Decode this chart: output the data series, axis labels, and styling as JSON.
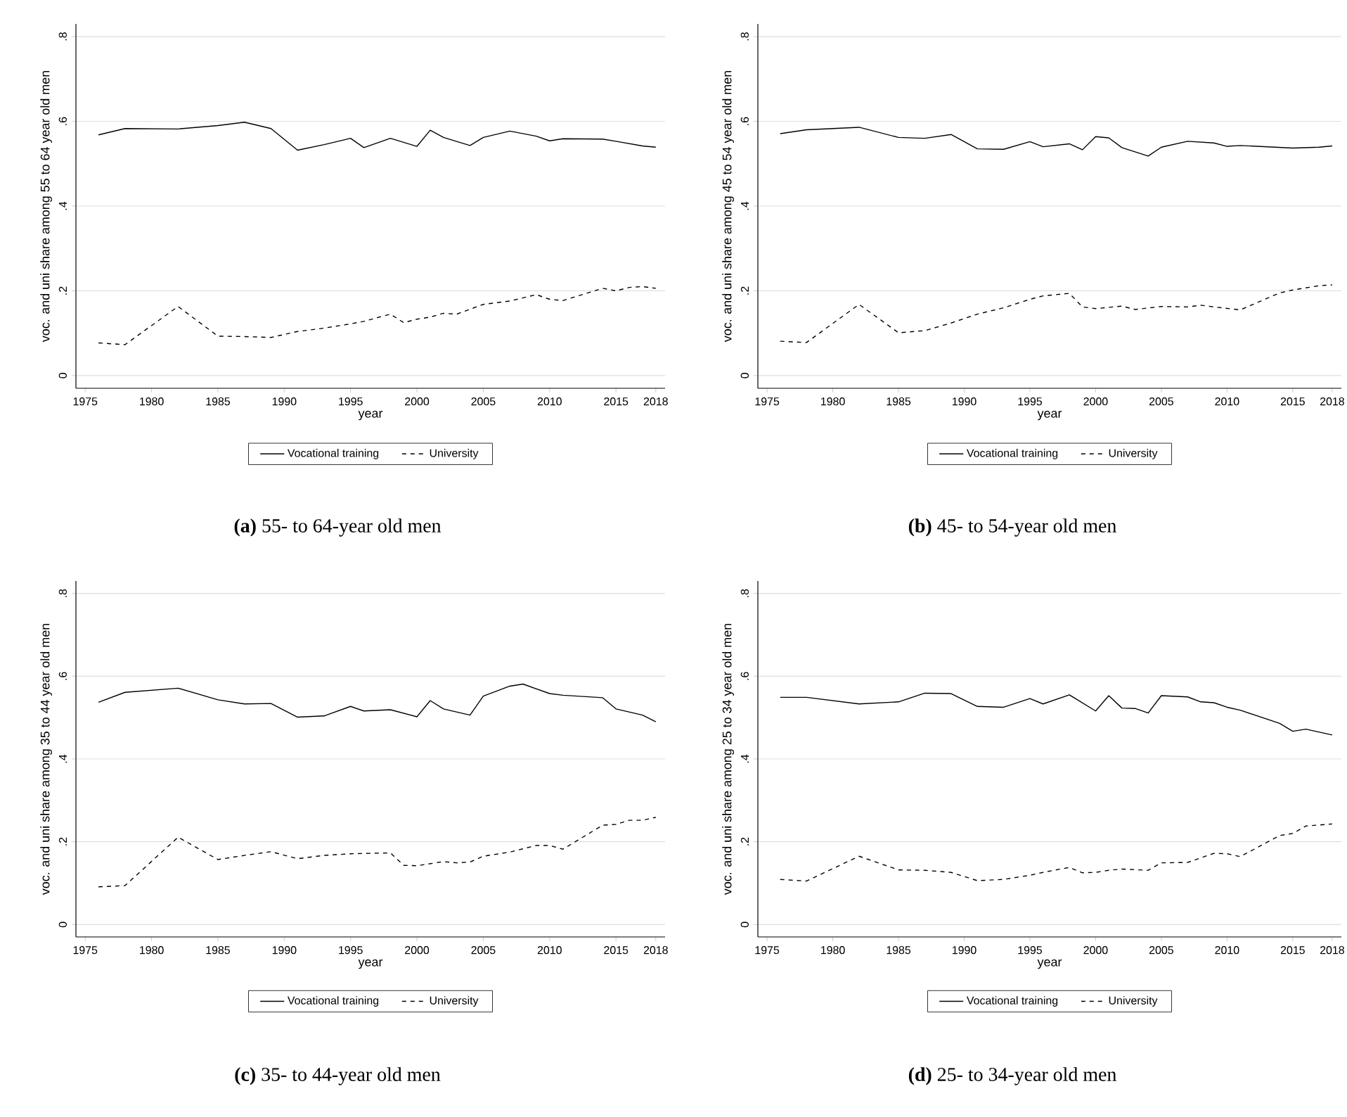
{
  "chart_data": [
    {
      "type": "line",
      "title": "**(a)** 55- to 64-year old men",
      "xlabel": "year",
      "ylabel": "voc. and uni share among 55 to 64 year old men",
      "xlim": [
        1974.3,
        2018.7
      ],
      "ylim": [
        -0.03,
        0.83
      ],
      "xticks": [
        1975,
        1980,
        1985,
        1990,
        1995,
        2000,
        2005,
        2010,
        2015,
        2018
      ],
      "yticks": [
        {
          "value": 0,
          "label": "0"
        },
        {
          "value": 0.2,
          "label": ".2"
        },
        {
          "value": 0.4,
          "label": ".4"
        },
        {
          "value": 0.6,
          "label": ".6"
        },
        {
          "value": 0.8,
          "label": ".8"
        }
      ],
      "grid": "y",
      "legend": "bottom",
      "series": [
        {
          "name": "Vocational training",
          "color": "#000000",
          "line_style": "solid",
          "x": [
            1976,
            1978,
            1982,
            1985,
            1987,
            1989,
            1991,
            1993,
            1995,
            1996,
            1998,
            2000,
            2001,
            2002,
            2004,
            2005,
            2007,
            2009,
            2010,
            2011,
            2014,
            2015,
            2017,
            2018
          ],
          "values": [
            0.568,
            0.583,
            0.582,
            0.59,
            0.598,
            0.583,
            0.532,
            0.545,
            0.56,
            0.538,
            0.56,
            0.541,
            0.579,
            0.562,
            0.543,
            0.562,
            0.577,
            0.565,
            0.554,
            0.559,
            0.558,
            0.553,
            0.542,
            0.539
          ]
        },
        {
          "name": "University",
          "color": "#000000",
          "line_style": "dashed",
          "x": [
            1976,
            1978,
            1982,
            1985,
            1987,
            1989,
            1991,
            1993,
            1995,
            1996,
            1998,
            1999,
            2000,
            2001,
            2002,
            2003,
            2005,
            2007,
            2009,
            2010,
            2011,
            2014,
            2015,
            2016,
            2017,
            2018
          ],
          "values": [
            0.077,
            0.073,
            0.163,
            0.093,
            0.092,
            0.09,
            0.104,
            0.112,
            0.122,
            0.128,
            0.145,
            0.125,
            0.133,
            0.138,
            0.147,
            0.145,
            0.168,
            0.176,
            0.191,
            0.18,
            0.177,
            0.206,
            0.2,
            0.208,
            0.21,
            0.206
          ]
        }
      ]
    },
    {
      "type": "line",
      "title": "**(b)** 45- to 54-year old men",
      "xlabel": "year",
      "ylabel": "voc. and uni share among 45 to 54 year old men",
      "xlim": [
        1974.3,
        2018.7
      ],
      "ylim": [
        -0.03,
        0.83
      ],
      "xticks": [
        1975,
        1980,
        1985,
        1990,
        1995,
        2000,
        2005,
        2010,
        2015,
        2018
      ],
      "yticks": [
        {
          "value": 0,
          "label": "0"
        },
        {
          "value": 0.2,
          "label": ".2"
        },
        {
          "value": 0.4,
          "label": ".4"
        },
        {
          "value": 0.6,
          "label": ".6"
        },
        {
          "value": 0.8,
          "label": ".8"
        }
      ],
      "grid": "y",
      "legend": "bottom",
      "series": [
        {
          "name": "Vocational training",
          "color": "#000000",
          "line_style": "solid",
          "x": [
            1976,
            1978,
            1982,
            1985,
            1987,
            1989,
            1991,
            1993,
            1995,
            1996,
            1998,
            1999,
            2000,
            2001,
            2002,
            2004,
            2005,
            2007,
            2009,
            2010,
            2011,
            2015,
            2017,
            2018
          ],
          "values": [
            0.571,
            0.58,
            0.586,
            0.562,
            0.56,
            0.569,
            0.535,
            0.534,
            0.552,
            0.54,
            0.547,
            0.533,
            0.564,
            0.561,
            0.538,
            0.518,
            0.539,
            0.553,
            0.549,
            0.541,
            0.543,
            0.537,
            0.539,
            0.542
          ]
        },
        {
          "name": "University",
          "color": "#000000",
          "line_style": "dashed",
          "x": [
            1976,
            1978,
            1982,
            1985,
            1987,
            1989,
            1991,
            1993,
            1995,
            1996,
            1998,
            1999,
            2000,
            2002,
            2003,
            2005,
            2007,
            2008,
            2009,
            2011,
            2014,
            2015,
            2017,
            2018
          ],
          "values": [
            0.081,
            0.078,
            0.168,
            0.101,
            0.106,
            0.124,
            0.145,
            0.16,
            0.18,
            0.188,
            0.194,
            0.162,
            0.158,
            0.164,
            0.156,
            0.163,
            0.162,
            0.166,
            0.162,
            0.155,
            0.195,
            0.202,
            0.212,
            0.214
          ]
        }
      ]
    },
    {
      "type": "line",
      "title": "**(c)** 35- to 44-year old men",
      "xlabel": "year",
      "ylabel": "voc. and uni share among 35 to 44 year old men",
      "xlim": [
        1974.3,
        2018.7
      ],
      "ylim": [
        -0.03,
        0.83
      ],
      "xticks": [
        1975,
        1980,
        1985,
        1990,
        1995,
        2000,
        2005,
        2010,
        2015,
        2018
      ],
      "yticks": [
        {
          "value": 0,
          "label": "0"
        },
        {
          "value": 0.2,
          "label": ".2"
        },
        {
          "value": 0.4,
          "label": ".4"
        },
        {
          "value": 0.6,
          "label": ".6"
        },
        {
          "value": 0.8,
          "label": ".8"
        }
      ],
      "grid": "y",
      "legend": "bottom",
      "series": [
        {
          "name": "Vocational training",
          "color": "#000000",
          "line_style": "solid",
          "x": [
            1976,
            1978,
            1982,
            1985,
            1987,
            1989,
            1991,
            1993,
            1995,
            1996,
            1998,
            2000,
            2001,
            2002,
            2004,
            2005,
            2007,
            2008,
            2010,
            2011,
            2014,
            2015,
            2017,
            2018
          ],
          "values": [
            0.537,
            0.561,
            0.571,
            0.543,
            0.533,
            0.534,
            0.501,
            0.504,
            0.527,
            0.516,
            0.519,
            0.502,
            0.541,
            0.521,
            0.506,
            0.552,
            0.576,
            0.581,
            0.558,
            0.554,
            0.548,
            0.521,
            0.506,
            0.49
          ]
        },
        {
          "name": "University",
          "color": "#000000",
          "line_style": "dashed",
          "x": [
            1976,
            1978,
            1982,
            1985,
            1987,
            1989,
            1991,
            1993,
            1995,
            1998,
            1999,
            2000,
            2002,
            2003,
            2004,
            2005,
            2007,
            2009,
            2010,
            2011,
            2014,
            2015,
            2016,
            2017,
            2018
          ],
          "values": [
            0.091,
            0.094,
            0.211,
            0.157,
            0.167,
            0.176,
            0.159,
            0.167,
            0.171,
            0.173,
            0.143,
            0.142,
            0.152,
            0.149,
            0.151,
            0.165,
            0.175,
            0.191,
            0.191,
            0.182,
            0.24,
            0.242,
            0.252,
            0.252,
            0.259
          ]
        }
      ]
    },
    {
      "type": "line",
      "title": "**(d)** 25- to 34-year old men",
      "xlabel": "year",
      "ylabel": "voc. and uni share among 25 to 34 year old men",
      "xlim": [
        1974.3,
        2018.7
      ],
      "ylim": [
        -0.03,
        0.83
      ],
      "xticks": [
        1975,
        1980,
        1985,
        1990,
        1995,
        2000,
        2005,
        2010,
        2015,
        2018
      ],
      "yticks": [
        {
          "value": 0,
          "label": "0"
        },
        {
          "value": 0.2,
          "label": ".2"
        },
        {
          "value": 0.4,
          "label": ".4"
        },
        {
          "value": 0.6,
          "label": ".6"
        },
        {
          "value": 0.8,
          "label": ".8"
        }
      ],
      "grid": "y",
      "legend": "bottom",
      "series": [
        {
          "name": "Vocational training",
          "color": "#000000",
          "line_style": "solid",
          "x": [
            1976,
            1978,
            1982,
            1985,
            1987,
            1989,
            1991,
            1993,
            1995,
            1996,
            1998,
            2000,
            2001,
            2002,
            2003,
            2004,
            2005,
            2007,
            2008,
            2009,
            2010,
            2011,
            2014,
            2015,
            2016,
            2018
          ],
          "values": [
            0.549,
            0.549,
            0.533,
            0.538,
            0.559,
            0.558,
            0.527,
            0.525,
            0.546,
            0.533,
            0.555,
            0.516,
            0.553,
            0.523,
            0.522,
            0.511,
            0.553,
            0.55,
            0.538,
            0.536,
            0.525,
            0.518,
            0.486,
            0.467,
            0.472,
            0.458
          ]
        },
        {
          "name": "University",
          "color": "#000000",
          "line_style": "dashed",
          "x": [
            1976,
            1978,
            1982,
            1985,
            1987,
            1989,
            1991,
            1993,
            1995,
            1996,
            1998,
            1999,
            2000,
            2001,
            2002,
            2004,
            2005,
            2007,
            2009,
            2010,
            2011,
            2014,
            2015,
            2016,
            2018
          ],
          "values": [
            0.109,
            0.105,
            0.165,
            0.132,
            0.131,
            0.126,
            0.106,
            0.109,
            0.119,
            0.126,
            0.138,
            0.125,
            0.126,
            0.131,
            0.134,
            0.131,
            0.149,
            0.15,
            0.172,
            0.171,
            0.164,
            0.215,
            0.22,
            0.238,
            0.243
          ]
        }
      ]
    }
  ]
}
